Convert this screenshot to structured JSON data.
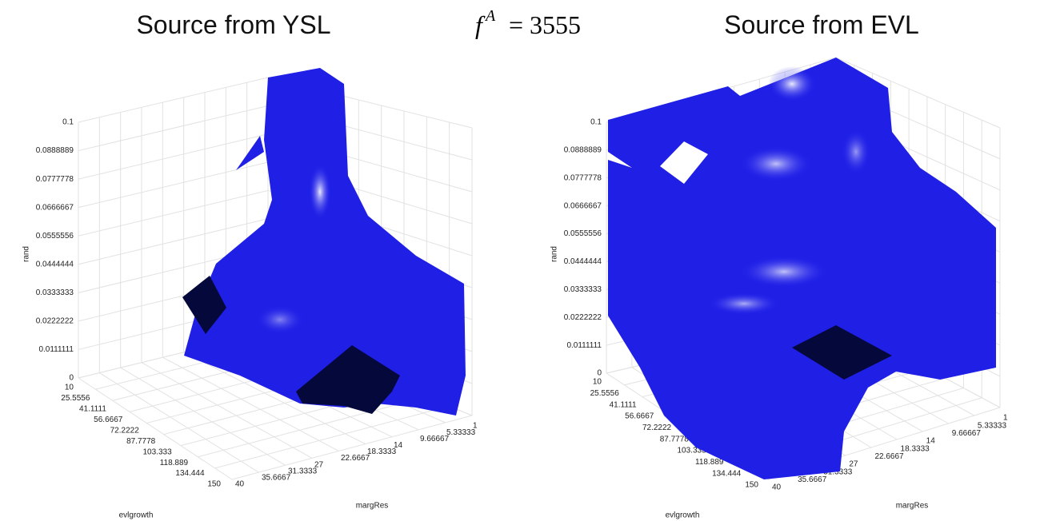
{
  "header": {
    "formula": {
      "base": "f",
      "sup": "A",
      "rest": "= 3555"
    }
  },
  "panels": [
    {
      "title": "Source from YSL",
      "z_axis": {
        "label": "rand",
        "ticks": [
          "0.1",
          "0.0888889",
          "0.0777778",
          "0.0666667",
          "0.0555556",
          "0.0444444",
          "0.0333333",
          "0.0222222",
          "0.0111111",
          "0"
        ]
      },
      "x_axis": {
        "label": "evlgrowth",
        "ticks": [
          "10",
          "25.5556",
          "41.1111",
          "56.6667",
          "72.2222",
          "87.7778",
          "103.333",
          "118.889",
          "134.444",
          "150"
        ]
      },
      "y_axis": {
        "label": "margRes",
        "ticks": [
          "1",
          "5.33333",
          "9.66667",
          "14",
          "18.3333",
          "22.6667",
          "27",
          "31.3333",
          "35.6667",
          "40"
        ]
      }
    },
    {
      "title": "Source from EVL",
      "z_axis": {
        "label": "rand",
        "ticks": [
          "0.1",
          "0.0888889",
          "0.0777778",
          "0.0666667",
          "0.0555556",
          "0.0444444",
          "0.0333333",
          "0.0222222",
          "0.0111111",
          "0"
        ]
      },
      "x_axis": {
        "label": "evlgrowth",
        "ticks": [
          "10",
          "25.5556",
          "41.1111",
          "56.6667",
          "72.2222",
          "87.7778",
          "103.333",
          "118.889",
          "134.444",
          "150"
        ]
      },
      "y_axis": {
        "label": "margRes",
        "ticks": [
          "1",
          "5.33333",
          "9.66667",
          "14",
          "18.3333",
          "22.6667",
          "27",
          "31.3333",
          "35.6667",
          "40"
        ]
      }
    }
  ]
}
